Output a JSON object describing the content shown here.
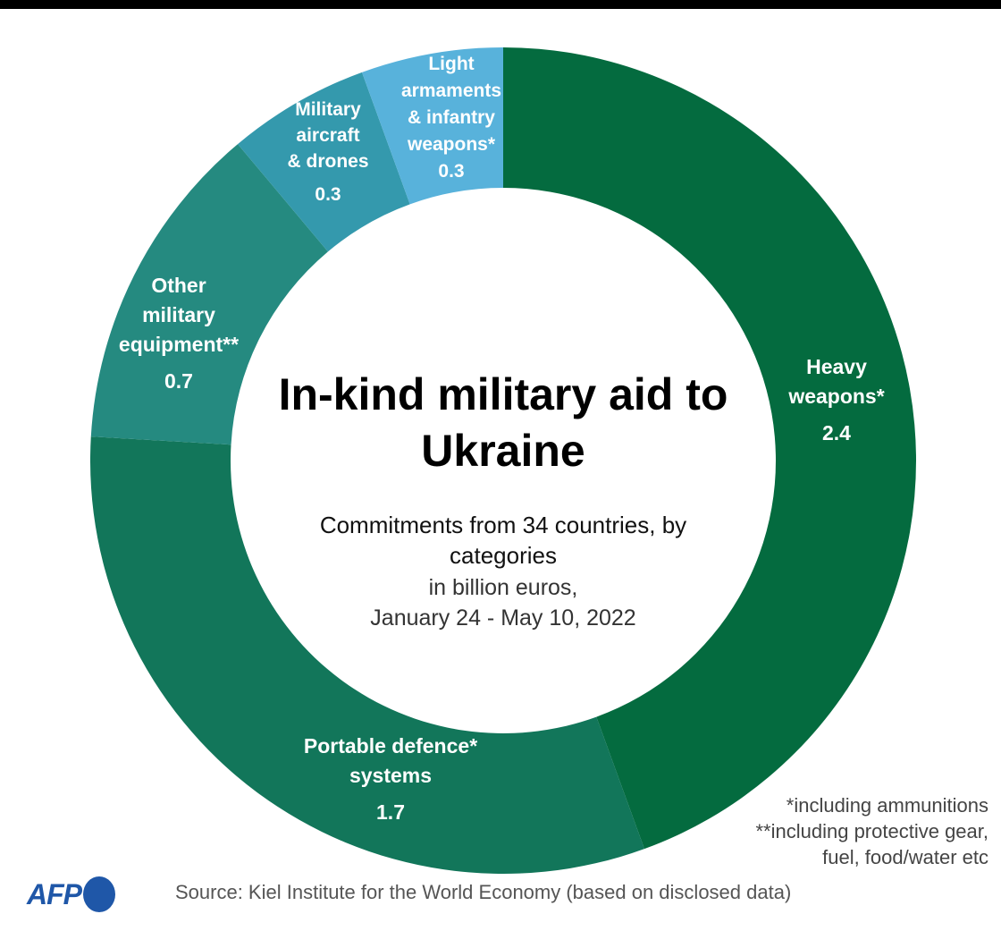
{
  "chart_data": {
    "type": "pie",
    "donut": true,
    "title": "In-kind military aid to Ukraine",
    "subtitle": "Commitments from 34 countries, by categories",
    "units_line1": "in billion euros,",
    "units_line2": "January 24 - May 10, 2022",
    "slices": [
      {
        "label": "Heavy weapons*",
        "value": 2.4,
        "display": "2.4",
        "color": "#046b3f"
      },
      {
        "label": "Portable defence* systems",
        "value": 1.7,
        "display": "1.7",
        "color": "#12765a"
      },
      {
        "label": "Other military equipment**",
        "value": 0.7,
        "display": "0.7",
        "color": "#258a80"
      },
      {
        "label": "Military aircraft & drones",
        "value": 0.3,
        "display": "0.3",
        "color": "#3499ad"
      },
      {
        "label": "Light armaments & infantry weapons*",
        "value": 0.3,
        "display": "0.3",
        "color": "#58b2db"
      }
    ],
    "start": "12 o'clock",
    "direction": "clockwise"
  },
  "notes": {
    "line1": "*including ammunitions",
    "line2": "**including protective gear,",
    "line3": "fuel, food/water etc"
  },
  "source": "Source: Kiel Institute for the World Economy (based on disclosed data)",
  "logo": "AFP"
}
